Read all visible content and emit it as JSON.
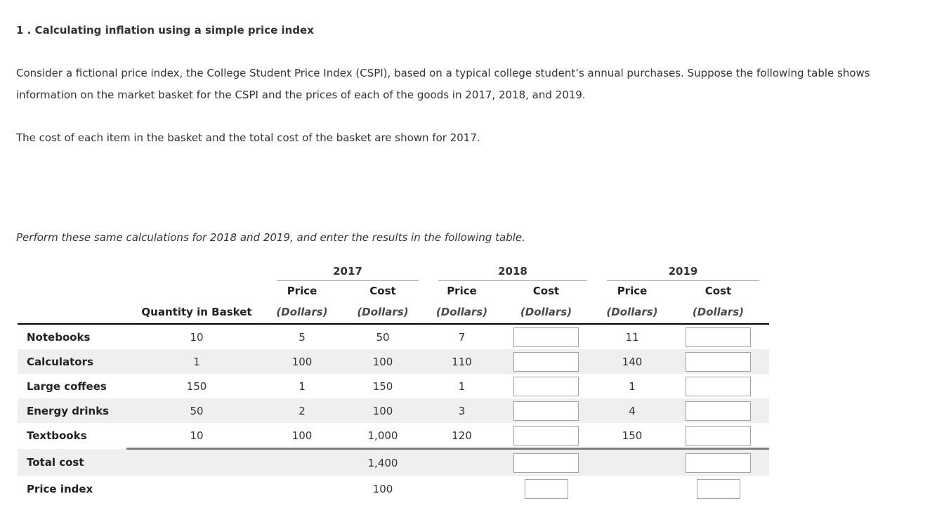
{
  "page": {
    "title": "1 . Calculating inflation using a simple price index",
    "paragraph1": "Consider a fictional price index, the College Student Price Index (CSPI), based on a typical college student’s annual purchases. Suppose the following table shows information on the market basket for the CSPI and the prices of each of the goods in 2017, 2018, and 2019.",
    "paragraph2": "The cost of each item in the basket and the total cost of the basket are shown for 2017.",
    "instruction": "Perform these same calculations for 2018 and 2019, and enter the results in the following table."
  },
  "table": {
    "quantity_header": "Quantity in Basket",
    "col_headers": {
      "price": "Price",
      "cost": "Cost",
      "unit": "(Dollars)"
    },
    "years": [
      "2017",
      "2018",
      "2019"
    ],
    "rows": [
      {
        "label": "Notebooks",
        "quantity": "10",
        "price_2017": "5",
        "cost_2017": "50",
        "price_2018": "7",
        "cost_2018_input": "",
        "price_2019": "11",
        "cost_2019_input": ""
      },
      {
        "label": "Calculators",
        "quantity": "1",
        "price_2017": "100",
        "cost_2017": "100",
        "price_2018": "110",
        "cost_2018_input": "",
        "price_2019": "140",
        "cost_2019_input": ""
      },
      {
        "label": "Large coffees",
        "quantity": "150",
        "price_2017": "1",
        "cost_2017": "150",
        "price_2018": "1",
        "cost_2018_input": "",
        "price_2019": "1",
        "cost_2019_input": ""
      },
      {
        "label": "Energy drinks",
        "quantity": "50",
        "price_2017": "2",
        "cost_2017": "100",
        "price_2018": "3",
        "cost_2018_input": "",
        "price_2019": "4",
        "cost_2019_input": ""
      },
      {
        "label": "Textbooks",
        "quantity": "10",
        "price_2017": "100",
        "cost_2017": "1,000",
        "price_2018": "120",
        "cost_2018_input": "",
        "price_2019": "150",
        "cost_2019_input": ""
      }
    ],
    "total_row": {
      "label": "Total cost",
      "cost_2017": "1,400",
      "cost_2018_input": "",
      "cost_2019_input": ""
    },
    "index_row": {
      "label": "Price index",
      "cost_2017": "100",
      "cost_2018_input": "",
      "cost_2019_input": ""
    }
  }
}
